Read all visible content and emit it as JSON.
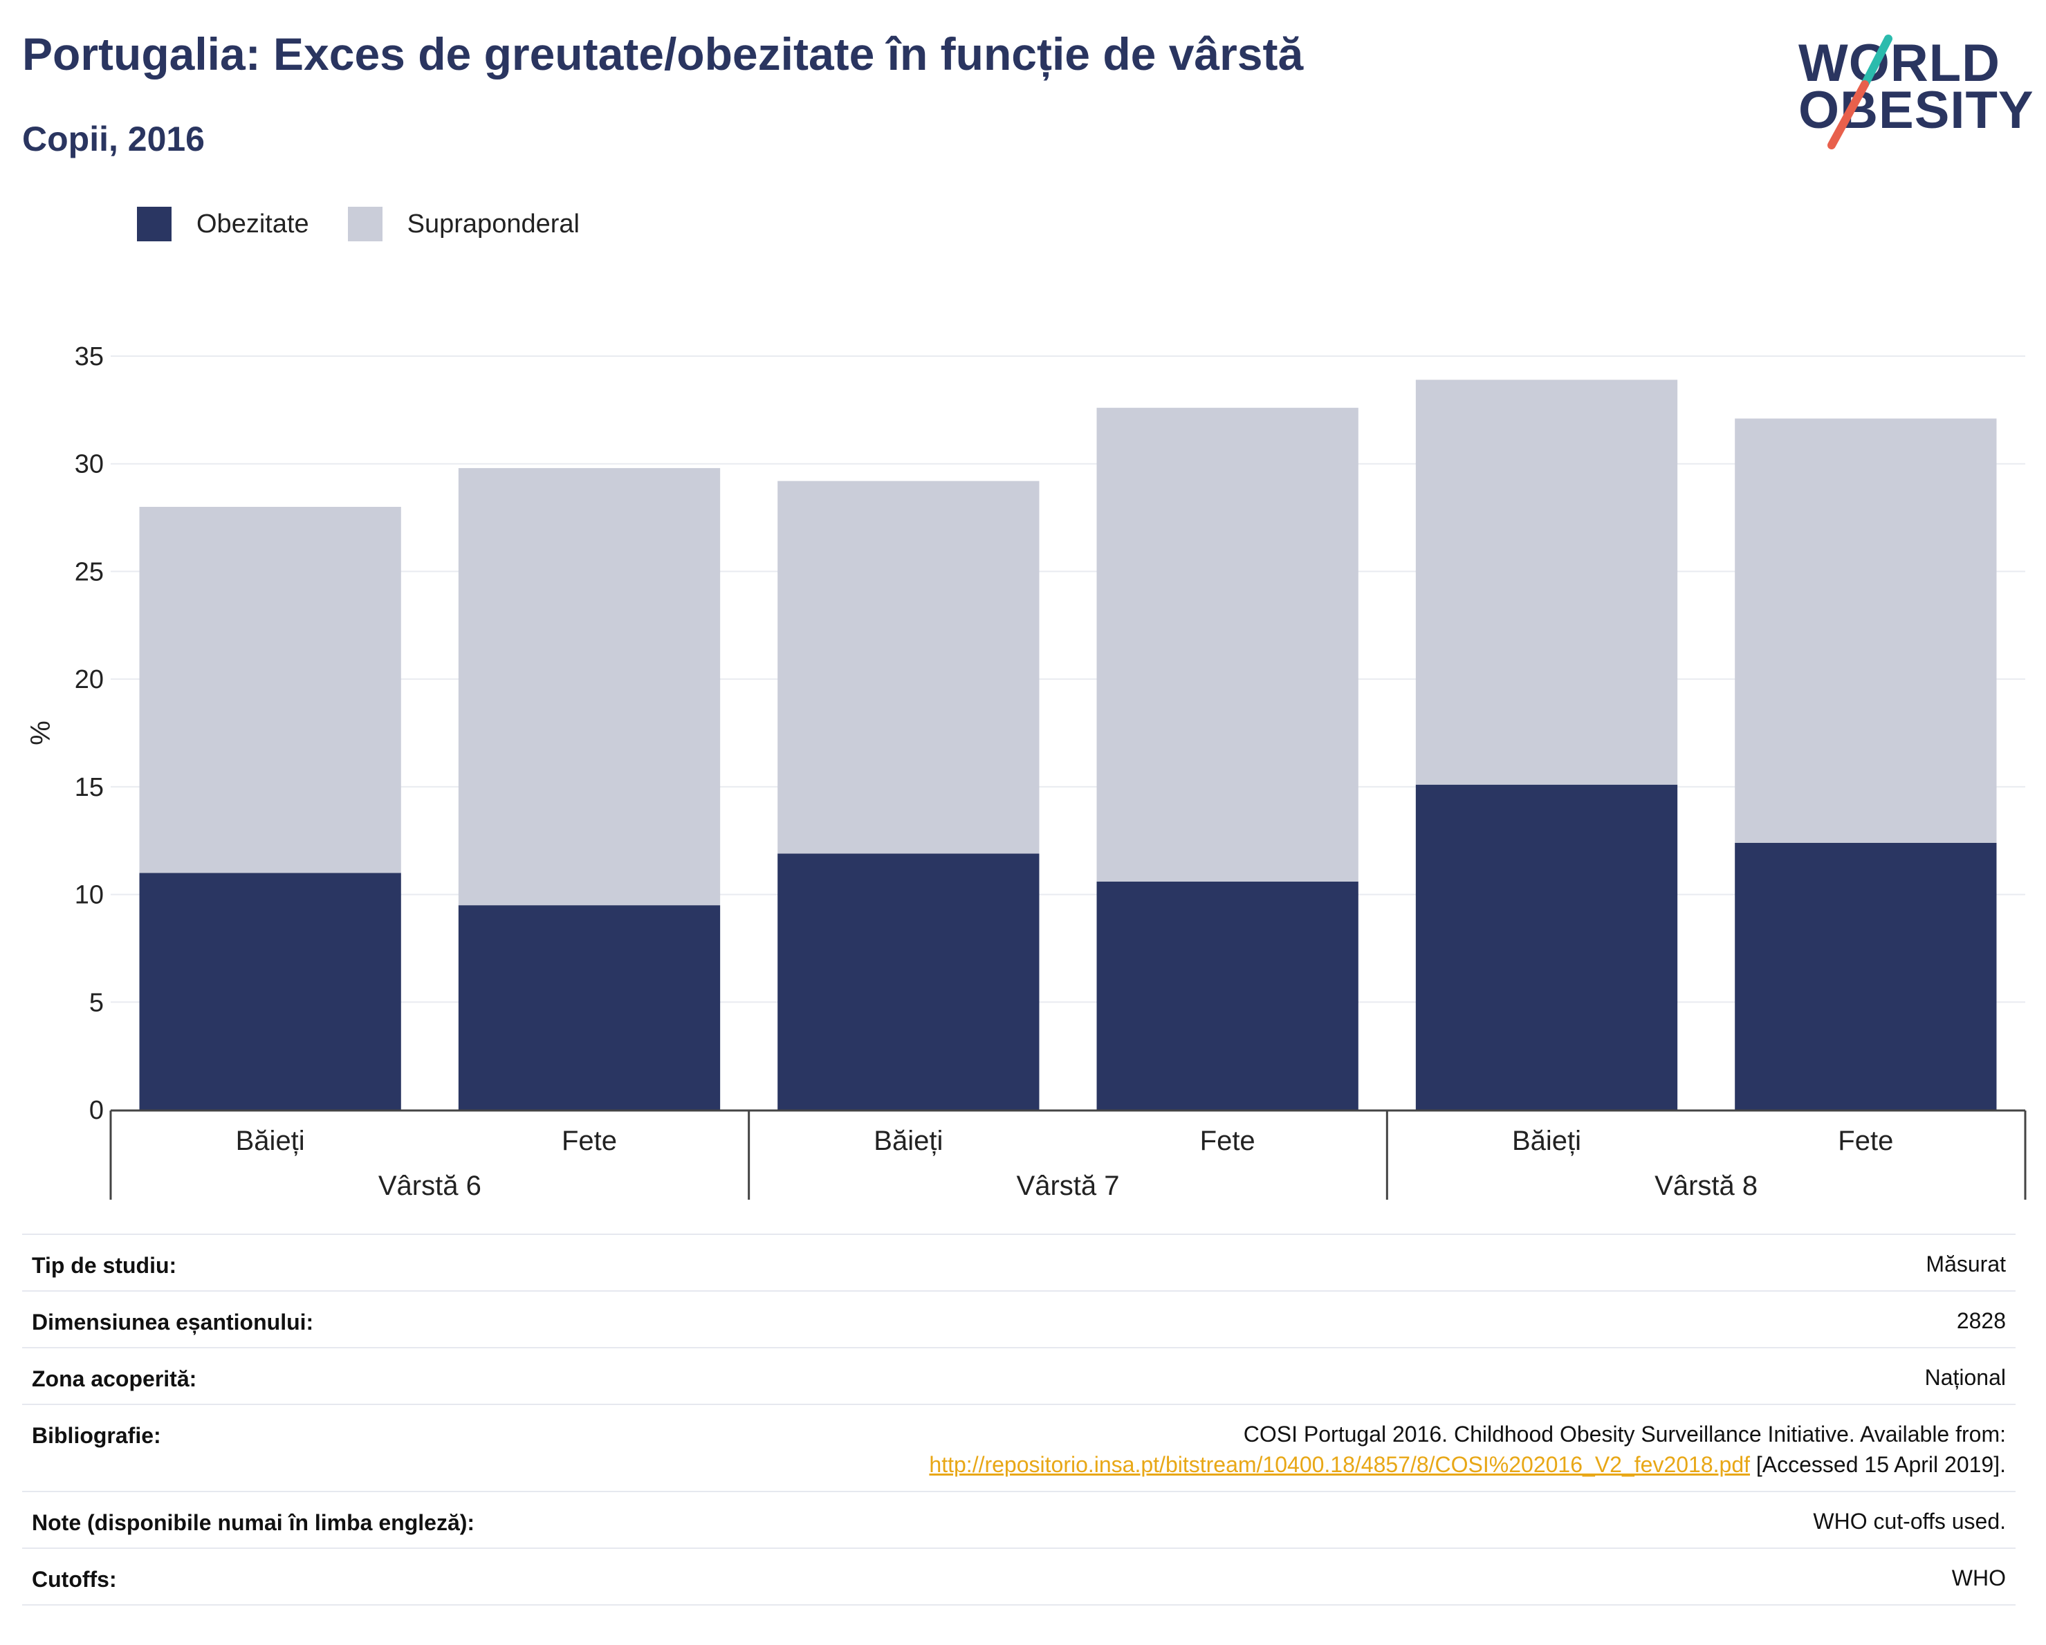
{
  "header": {
    "title": "Portugalia: Exces de greutate/obezitate în funcție de vârstă",
    "subtitle": "Copii, 2016"
  },
  "logo": {
    "line1": "WORLD",
    "line2": "OBESITY",
    "slash_colors": [
      "#2bbbad",
      "#e8604c"
    ]
  },
  "legend": {
    "items": [
      {
        "label": "Obezitate",
        "color": "#2a3662"
      },
      {
        "label": "Supraponderal",
        "color": "#cacdd9"
      }
    ]
  },
  "chart_data": {
    "type": "bar",
    "stacked": true,
    "ylabel": "%",
    "ylim": [
      0,
      35
    ],
    "yticks": [
      0,
      5,
      10,
      15,
      20,
      25,
      30,
      35
    ],
    "grid": true,
    "legend_position": "top-left",
    "groups": [
      "Vârstă 6",
      "Vârstă 7",
      "Vârstă 8"
    ],
    "categories": [
      "Băieți",
      "Fete",
      "Băieți",
      "Fete",
      "Băieți",
      "Fete"
    ],
    "series": [
      {
        "name": "Obezitate",
        "color": "#2a3662",
        "values": [
          11.0,
          9.5,
          11.9,
          10.6,
          15.1,
          12.4
        ]
      },
      {
        "name": "Supraponderal",
        "color": "#cacdd9",
        "values": [
          17.0,
          20.3,
          17.3,
          22.0,
          18.8,
          19.7
        ]
      }
    ]
  },
  "details": {
    "rows": [
      {
        "label": "Tip de studiu:",
        "value": "Măsurat"
      },
      {
        "label": "Dimensiunea eșantionului:",
        "value": "2828"
      },
      {
        "label": "Zona acoperită:",
        "value": "Național"
      },
      {
        "label": "Bibliografie:",
        "value_line1": "COSI Portugal 2016. Childhood Obesity Surveillance Initiative. Available from:",
        "link": "http://repositorio.insa.pt/bitstream/10400.18/4857/8/COSI%202016_V2_fev2018.pdf",
        "value_after_link": " [Accessed 15 April 2019]."
      },
      {
        "label": "Note (disponibile numai în limba engleză):",
        "value": "WHO cut-offs used."
      },
      {
        "label": "Cutoffs:",
        "value": "WHO"
      }
    ]
  }
}
